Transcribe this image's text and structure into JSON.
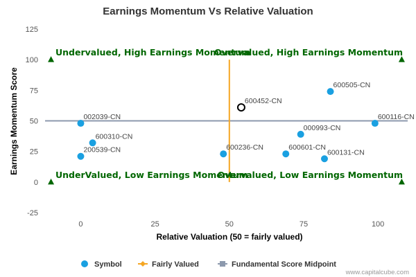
{
  "chart_data": {
    "type": "scatter",
    "title": "Earnings Momentum Vs Relative Valuation",
    "xlabel": "Relative Valuation (50 = fairly valued)",
    "ylabel": "Earnings Momentum Score",
    "xlim": [
      -12,
      110
    ],
    "ylim": [
      -25,
      125
    ],
    "x_ticks": [
      0,
      25,
      50,
      75,
      100
    ],
    "y_ticks": [
      -25,
      0,
      25,
      50,
      75,
      100,
      125
    ],
    "grid": false,
    "legend_position": "bottom",
    "series": [
      {
        "name": "Symbol",
        "color": "#1aa0e1",
        "points": [
          {
            "x": 0,
            "y": 48,
            "label": "002039-CN"
          },
          {
            "x": 4,
            "y": 32,
            "label": "600310-CN"
          },
          {
            "x": 0,
            "y": 21,
            "label": "200539-CN"
          },
          {
            "x": 48,
            "y": 23,
            "label": "600236-CN"
          },
          {
            "x": 69,
            "y": 23,
            "label": "600601-CN"
          },
          {
            "x": 74,
            "y": 39,
            "label": "000993-CN"
          },
          {
            "x": 82,
            "y": 19,
            "label": "600131-CN"
          },
          {
            "x": 84,
            "y": 74,
            "label": "600505-CN"
          },
          {
            "x": 99,
            "y": 48,
            "label": "600116-CN"
          }
        ]
      },
      {
        "name": "Fairly Valued",
        "color": "#f5a623",
        "x": 50,
        "y_range": [
          0,
          100
        ]
      },
      {
        "name": "Fundamental Score Midpoint",
        "color": "#8c99ad",
        "y": 50,
        "x_range": [
          -12,
          110
        ]
      }
    ],
    "highlight": {
      "x": 54,
      "y": 61,
      "label": "600452-CN"
    },
    "quadrant_labels": {
      "top_left": "Undervalued, High Earnings Momentum",
      "top_right": "Overvalued, High Earnings Momentum",
      "bottom_left": "UnderValued, Low Earnings Momentum",
      "bottom_right": "Overvalued, Low Earnings Momentum"
    },
    "quadrant_color": "#006600"
  },
  "credit": "www.capitalcube.com"
}
